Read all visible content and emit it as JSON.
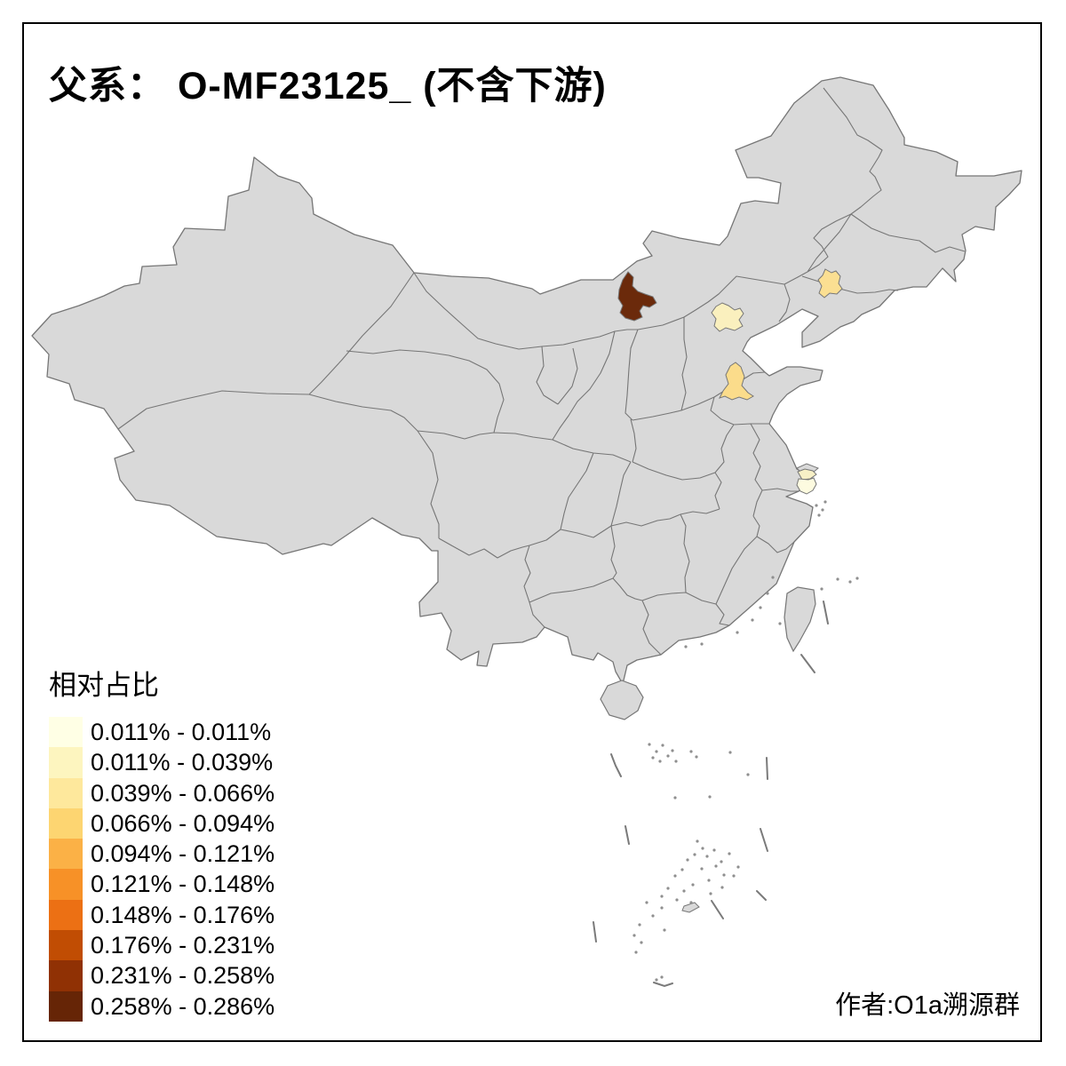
{
  "title": "父系： O-MF23125_ (不含下游)",
  "legend": {
    "title": "相对占比",
    "items": [
      {
        "label": "0.011% - 0.011%",
        "color": "#FFFFE5"
      },
      {
        "label": "0.011% - 0.039%",
        "color": "#FDF5BF"
      },
      {
        "label": "0.039% - 0.066%",
        "color": "#FEE89C"
      },
      {
        "label": "0.066% - 0.094%",
        "color": "#FDD571"
      },
      {
        "label": "0.094% - 0.121%",
        "color": "#FBB146"
      },
      {
        "label": "0.121% - 0.148%",
        "color": "#F79127"
      },
      {
        "label": "0.148% - 0.176%",
        "color": "#EC7014"
      },
      {
        "label": "0.176% - 0.231%",
        "color": "#C14D03"
      },
      {
        "label": "0.231% - 0.258%",
        "color": "#903104"
      },
      {
        "label": "0.258% - 0.286%",
        "color": "#662506"
      }
    ]
  },
  "author": "作者:O1a溯源群",
  "map": {
    "base_fill": "#D9D9D9",
    "border_color": "#767676",
    "regions": [
      {
        "name": "inner-mongolia-highlight",
        "value_class": "0.258% - 0.286%",
        "color": "#6B2A0B"
      },
      {
        "name": "beijing-highlight",
        "value_class": "0.011% - 0.039%",
        "color": "#FAF0BE"
      },
      {
        "name": "liaoning-highlight",
        "value_class": "0.039% - 0.066%",
        "color": "#FBDF92"
      },
      {
        "name": "shandong-highlight",
        "value_class": "0.039% - 0.066%",
        "color": "#FBDC8B"
      },
      {
        "name": "jiangsu-highlight-north",
        "value_class": "0.011% - 0.039%",
        "color": "#F7F0C6"
      },
      {
        "name": "jiangsu-highlight-south",
        "value_class": "0.011% - 0.011%",
        "color": "#FDFBE0"
      }
    ]
  }
}
